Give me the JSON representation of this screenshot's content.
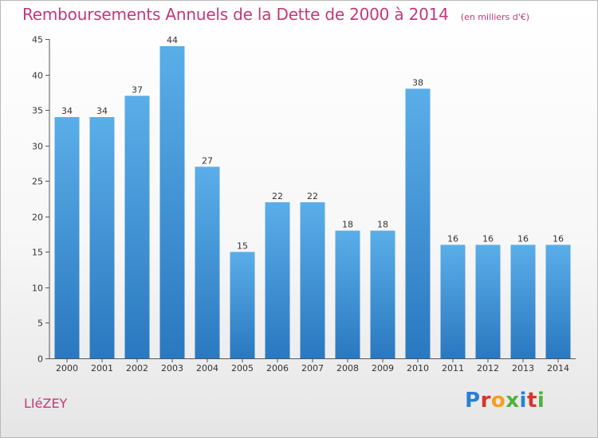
{
  "header": {
    "title": "Remboursements Annuels de la Dette de 2000 à 2014",
    "unit": "(en milliers d'€)"
  },
  "footer": {
    "commune": "LIéZEY",
    "brand": "Proxiti"
  },
  "colors": {
    "accent": "#c0397a",
    "bar_top": "#5aaee8",
    "bar_bottom": "#2a78c0"
  },
  "chart_data": {
    "type": "bar",
    "categories": [
      "2000",
      "2001",
      "2002",
      "2003",
      "2004",
      "2005",
      "2006",
      "2007",
      "2008",
      "2009",
      "2010",
      "2011",
      "2012",
      "2013",
      "2014"
    ],
    "values": [
      34,
      34,
      37,
      44,
      27,
      15,
      22,
      22,
      18,
      18,
      38,
      16,
      16,
      16,
      16
    ],
    "ylim": [
      0,
      45
    ],
    "yticks": [
      0,
      5,
      10,
      15,
      20,
      25,
      30,
      35,
      40,
      45
    ],
    "grid": false
  }
}
